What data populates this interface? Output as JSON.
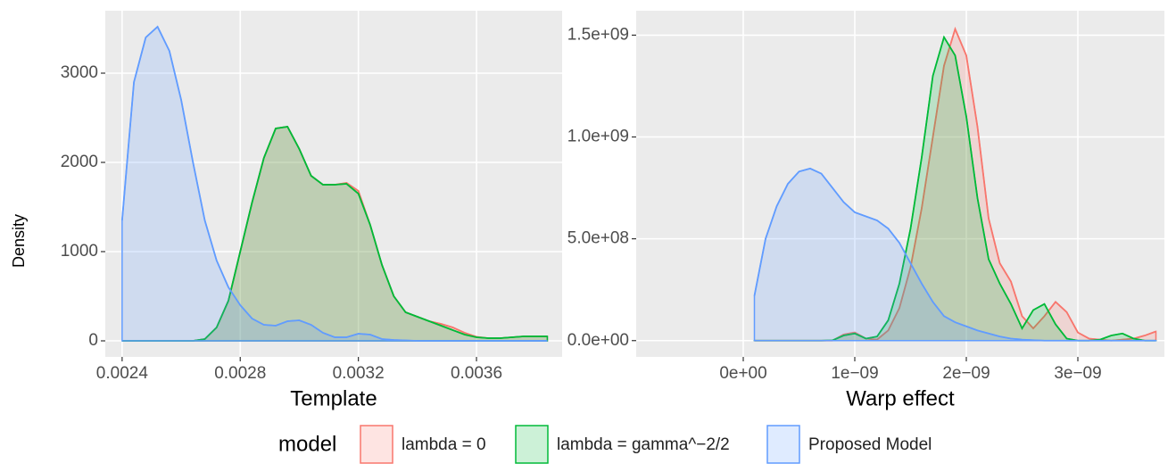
{
  "chart_data": [
    {
      "type": "density",
      "x_label": "Template",
      "y_label": "Density",
      "x": [
        0.0024,
        0.00244,
        0.00248,
        0.00252,
        0.00256,
        0.0026,
        0.00264,
        0.00268,
        0.00272,
        0.00276,
        0.0028,
        0.00284,
        0.00288,
        0.00292,
        0.00296,
        0.003,
        0.00304,
        0.00308,
        0.00312,
        0.00316,
        0.0032,
        0.00324,
        0.00328,
        0.00332,
        0.00336,
        0.0034,
        0.00344,
        0.00348,
        0.00352,
        0.00356,
        0.0036,
        0.00364,
        0.00368,
        0.00372,
        0.00376,
        0.0038,
        0.00384
      ],
      "series": [
        {
          "name": "lambda = 0",
          "color": "#F8766D",
          "values": [
            0,
            0,
            0,
            0,
            0,
            0,
            0,
            20,
            150,
            450,
            1000,
            1550,
            2050,
            2380,
            2400,
            2150,
            1850,
            1750,
            1750,
            1770,
            1680,
            1300,
            850,
            500,
            320,
            270,
            220,
            190,
            150,
            90,
            45,
            30,
            30,
            40,
            50,
            50,
            50
          ]
        },
        {
          "name": "lambda = gamma^−2/2",
          "color": "#00BA38",
          "values": [
            0,
            0,
            0,
            0,
            0,
            0,
            0,
            20,
            150,
            450,
            1000,
            1550,
            2050,
            2380,
            2400,
            2150,
            1850,
            1750,
            1750,
            1760,
            1650,
            1300,
            850,
            500,
            320,
            270,
            220,
            170,
            120,
            70,
            40,
            30,
            30,
            40,
            50,
            50,
            50
          ]
        },
        {
          "name": "Proposed Model",
          "color": "#619CFF",
          "values": [
            1350,
            2900,
            3400,
            3520,
            3250,
            2700,
            2000,
            1350,
            900,
            600,
            400,
            250,
            180,
            170,
            220,
            230,
            180,
            90,
            40,
            40,
            80,
            70,
            20,
            10,
            5,
            0,
            0,
            0,
            0,
            0,
            0,
            0,
            0,
            0,
            0,
            0,
            0
          ]
        }
      ],
      "xlim": [
        0.002343,
        0.00389
      ],
      "ylim": [
        -180,
        3700
      ],
      "xticks": [
        0.0024,
        0.0028,
        0.0032,
        0.0036
      ],
      "yticks": [
        0,
        1000,
        2000,
        3000
      ],
      "grid": true
    },
    {
      "type": "density",
      "x_label": "Warp effect",
      "x": [
        1e-10,
        2e-10,
        3e-10,
        4e-10,
        5e-10,
        6e-10,
        7e-10,
        8e-10,
        9e-10,
        1e-09,
        1.1e-09,
        1.2e-09,
        1.3e-09,
        1.4e-09,
        1.5e-09,
        1.6e-09,
        1.7e-09,
        1.8e-09,
        1.9e-09,
        2e-09,
        2.1e-09,
        2.2e-09,
        2.3e-09,
        2.4e-09,
        2.5e-09,
        2.6e-09,
        2.7e-09,
        2.8e-09,
        2.9e-09,
        3e-09,
        3.1e-09,
        3.2e-09,
        3.3e-09,
        3.4e-09,
        3.5e-09,
        3.6e-09,
        3.7e-09
      ],
      "series": [
        {
          "name": "lambda = 0",
          "color": "#F8766D",
          "values": [
            0,
            0,
            0,
            0,
            0,
            0,
            0,
            0,
            30000000,
            40000000,
            10000000,
            5000000,
            50000000,
            160000000,
            360000000,
            650000000,
            1000000000,
            1350000000,
            1530000000,
            1400000000,
            1050000000,
            600000000,
            380000000,
            290000000,
            120000000,
            60000000,
            120000000,
            190000000,
            140000000,
            40000000,
            10000000,
            5000000,
            0,
            5000000,
            10000000,
            25000000,
            45000000
          ]
        },
        {
          "name": "lambda = gamma^−2/2",
          "color": "#00BA38",
          "values": [
            0,
            0,
            0,
            0,
            0,
            0,
            0,
            1000000,
            25000000,
            35000000,
            10000000,
            20000000,
            100000000,
            280000000,
            550000000,
            900000000,
            1300000000,
            1490000000,
            1400000000,
            1100000000,
            700000000,
            400000000,
            280000000,
            180000000,
            60000000,
            150000000,
            180000000,
            80000000,
            10000000,
            0,
            0,
            5000000,
            25000000,
            35000000,
            10000000,
            0,
            0
          ]
        },
        {
          "name": "Proposed Model",
          "color": "#619CFF",
          "values": [
            220000000,
            500000000,
            660000000,
            770000000,
            830000000,
            845000000,
            820000000,
            750000000,
            680000000,
            630000000,
            610000000,
            590000000,
            550000000,
            480000000,
            380000000,
            280000000,
            190000000,
            120000000,
            90000000,
            70000000,
            50000000,
            35000000,
            20000000,
            10000000,
            5000000,
            2000000,
            0,
            0,
            0,
            0,
            0,
            0,
            0,
            0,
            0,
            0,
            0
          ]
        }
      ],
      "xlim": [
        -9.6e-10,
        3.776e-09
      ],
      "ylim": [
        -80000000,
        1620000000
      ],
      "xticks": [
        {
          "value": 0,
          "label": "0e+00"
        },
        {
          "value": 1e-09,
          "label": "1e−09"
        },
        {
          "value": 2e-09,
          "label": "2e−09"
        },
        {
          "value": 3e-09,
          "label": "3e−09"
        }
      ],
      "yticks": [
        {
          "value": 0,
          "label": "0.0e+00"
        },
        {
          "value": 500000000,
          "label": "5.0e+08"
        },
        {
          "value": 1000000000,
          "label": "1.0e+09"
        },
        {
          "value": 1500000000,
          "label": "1.5e+09"
        }
      ],
      "grid": true
    }
  ],
  "legend": {
    "title": "model"
  }
}
